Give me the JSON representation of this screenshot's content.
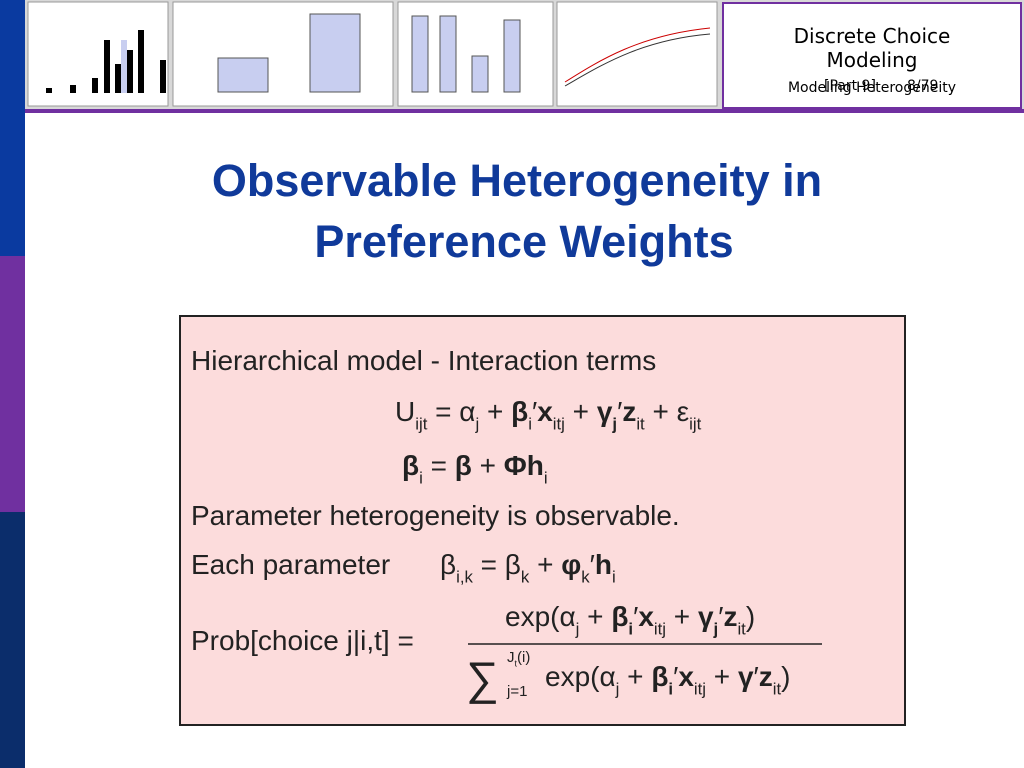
{
  "header": {
    "course": "Discrete Choice Modeling",
    "topic": "Modeling Heterogeneity",
    "part": "[Part 9]",
    "page": "8/79"
  },
  "title": [
    "Observable Heterogeneity in",
    "Preference Weights"
  ],
  "box": {
    "intro": "Hierarchical model - Interaction terms",
    "utility": [
      {
        "text": "U"
      },
      {
        "text": "ijt",
        "sub": true
      },
      {
        "text": " = α"
      },
      {
        "text": "j",
        "sub": true
      },
      {
        "text": " + "
      },
      {
        "text": "β",
        "bold": true
      },
      {
        "text": "i",
        "sub": true
      },
      {
        "text": "′"
      },
      {
        "text": "x",
        "bold": true
      },
      {
        "text": "itj",
        "sub": true
      },
      {
        "text": " + "
      },
      {
        "text": "γ",
        "bold": true
      },
      {
        "text": "j",
        "sub": true,
        "bold": true
      },
      {
        "text": "′"
      },
      {
        "text": "z",
        "bold": true
      },
      {
        "text": "it",
        "sub": true
      },
      {
        "text": " + ε"
      },
      {
        "text": "ijt",
        "sub": true
      }
    ],
    "beta": [
      {
        "text": "β",
        "bold": true
      },
      {
        "text": "i",
        "sub": true
      },
      {
        "text": " = "
      },
      {
        "text": "β",
        "bold": true
      },
      {
        "text": " + "
      },
      {
        "text": "Φh",
        "bold": true
      },
      {
        "text": "i",
        "sub": true
      }
    ],
    "statement": "Parameter heterogeneity is observable.",
    "each_label": "Each parameter",
    "each": [
      {
        "text": "β"
      },
      {
        "text": "i,k",
        "sub": true
      },
      {
        "text": " = β"
      },
      {
        "text": "k",
        "sub": true
      },
      {
        "text": " + "
      },
      {
        "text": "φ",
        "bold": true
      },
      {
        "text": "k",
        "sub": true
      },
      {
        "text": "′"
      },
      {
        "text": "h",
        "bold": true
      },
      {
        "text": "i",
        "sub": true
      }
    ],
    "prob_label": "Prob[choice j|i,t] =",
    "numerator": [
      {
        "text": "exp(α"
      },
      {
        "text": "j",
        "sub": true
      },
      {
        "text": " + "
      },
      {
        "text": "β",
        "bold": true
      },
      {
        "text": "i",
        "sub": true,
        "bold": true
      },
      {
        "text": "′"
      },
      {
        "text": "x",
        "bold": true
      },
      {
        "text": "itj",
        "sub": true
      },
      {
        "text": " + "
      },
      {
        "text": "γ",
        "bold": true
      },
      {
        "text": "j",
        "sub": true,
        "bold": true
      },
      {
        "text": "′"
      },
      {
        "text": "z",
        "bold": true
      },
      {
        "text": "it",
        "sub": true
      },
      {
        "text": ")"
      }
    ],
    "sum_symbol": "∑",
    "sum_upper": [
      {
        "text": "J"
      },
      {
        "text": "t",
        "sub": true
      },
      {
        "text": "(i)"
      }
    ],
    "sum_lower": "j=1",
    "denominator": [
      {
        "text": "exp(α"
      },
      {
        "text": "j",
        "sub": true
      },
      {
        "text": " + "
      },
      {
        "text": "β",
        "bold": true
      },
      {
        "text": "i",
        "sub": true,
        "bold": true
      },
      {
        "text": "′"
      },
      {
        "text": "x",
        "bold": true
      },
      {
        "text": "itj",
        "sub": true
      },
      {
        "text": " + "
      },
      {
        "text": "γ",
        "bold": true
      },
      {
        "text": "′"
      },
      {
        "text": "z",
        "bold": true
      },
      {
        "text": "it",
        "sub": true
      },
      {
        "text": ")"
      }
    ]
  }
}
